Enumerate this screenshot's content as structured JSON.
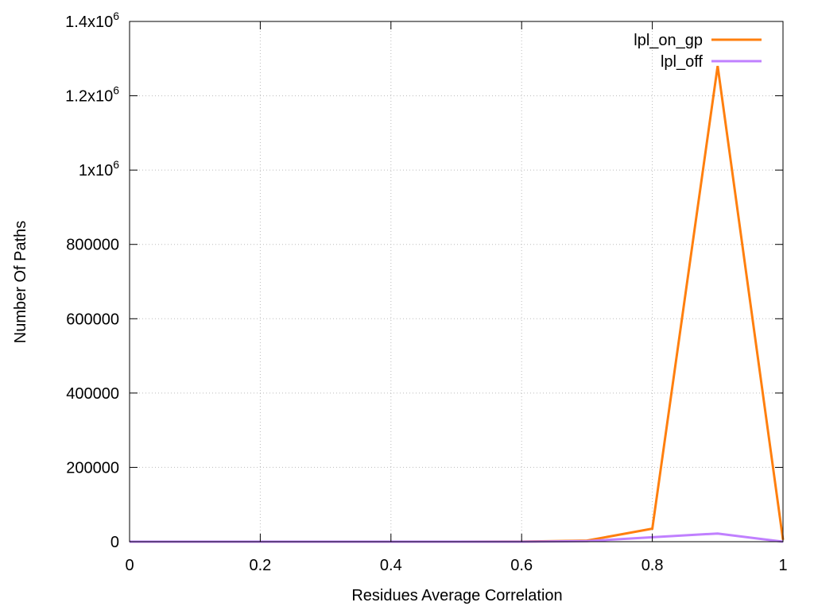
{
  "chart_data": {
    "type": "line",
    "title": "",
    "xlabel": "Residues Average Correlation",
    "ylabel": "Number Of Paths",
    "xlim": [
      0,
      1
    ],
    "ylim": [
      0,
      1400000
    ],
    "grid": true,
    "legend_position": "top-right",
    "x_ticks": [
      {
        "value": 0,
        "label": "0"
      },
      {
        "value": 0.2,
        "label": "0.2"
      },
      {
        "value": 0.4,
        "label": "0.4"
      },
      {
        "value": 0.6,
        "label": "0.6"
      },
      {
        "value": 0.8,
        "label": "0.8"
      },
      {
        "value": 1,
        "label": "1"
      }
    ],
    "y_ticks": [
      {
        "value": 0,
        "label": "0"
      },
      {
        "value": 200000,
        "label": "200000"
      },
      {
        "value": 400000,
        "label": "400000"
      },
      {
        "value": 600000,
        "label": "600000"
      },
      {
        "value": 800000,
        "label": "800000"
      },
      {
        "value": 1000000,
        "base": "1x10",
        "exp": "6"
      },
      {
        "value": 1200000,
        "base": "1.2x10",
        "exp": "6"
      },
      {
        "value": 1400000,
        "base": "1.4x10",
        "exp": "6"
      }
    ],
    "x": [
      0,
      0.1,
      0.2,
      0.3,
      0.4,
      0.5,
      0.6,
      0.7,
      0.8,
      0.9,
      1.0
    ],
    "series": [
      {
        "name": "lpl_on_gp",
        "color": "#ff7f0e",
        "values": [
          0,
          0,
          0,
          0,
          0,
          0,
          200,
          3000,
          35000,
          1280000,
          5000
        ]
      },
      {
        "name": "lpl_off",
        "color": "#c080ff",
        "values": [
          0,
          0,
          0,
          0,
          0,
          0,
          100,
          1500,
          12000,
          22000,
          0
        ]
      }
    ]
  }
}
